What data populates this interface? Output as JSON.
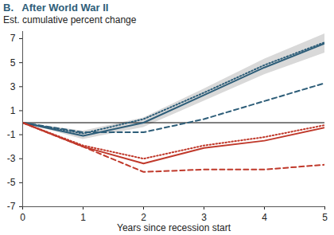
{
  "chart_data": {
    "type": "line",
    "title": "B.   After World War II",
    "subtitle": "Est. cumulative percent change",
    "x_label": "Years since recession start",
    "x": [
      0,
      1,
      2,
      3,
      4,
      5
    ],
    "xlim": [
      0,
      5
    ],
    "xticks": [
      0,
      1,
      2,
      3,
      4,
      5
    ],
    "ylim": [
      -7,
      7.6
    ],
    "yticks": [
      -7,
      -5,
      -3,
      -1,
      1,
      3,
      5,
      7
    ],
    "grid": false,
    "hline": 0,
    "band": {
      "color": "#d9d9d9",
      "lower": [
        0,
        -1.4,
        -0.4,
        1.8,
        4.0,
        5.8
      ],
      "upper": [
        0,
        -0.7,
        0.4,
        2.8,
        5.3,
        7.4
      ]
    },
    "series": [
      {
        "color": "#2e5e79",
        "line_style": "solid",
        "values": [
          0,
          -1.1,
          0,
          2.3,
          4.6,
          6.6
        ]
      },
      {
        "color": "#2e5e79",
        "line_style": "dotted",
        "values": [
          0,
          -0.9,
          0.3,
          2.5,
          4.8,
          6.7
        ]
      },
      {
        "color": "#2e5e79",
        "line_style": "dashed",
        "values": [
          0,
          -0.8,
          -0.8,
          0.3,
          1.8,
          3.3
        ]
      },
      {
        "color": "#c0392b",
        "line_style": "solid",
        "values": [
          0,
          -2.0,
          -3.4,
          -2.1,
          -1.5,
          -0.4
        ]
      },
      {
        "color": "#c0392b",
        "line_style": "dotted",
        "values": [
          0,
          -1.9,
          -3.0,
          -1.9,
          -1.2,
          -0.2
        ]
      },
      {
        "color": "#c0392b",
        "line_style": "dashed",
        "values": [
          0,
          -2.0,
          -4.1,
          -3.9,
          -3.9,
          -3.5
        ]
      }
    ]
  }
}
